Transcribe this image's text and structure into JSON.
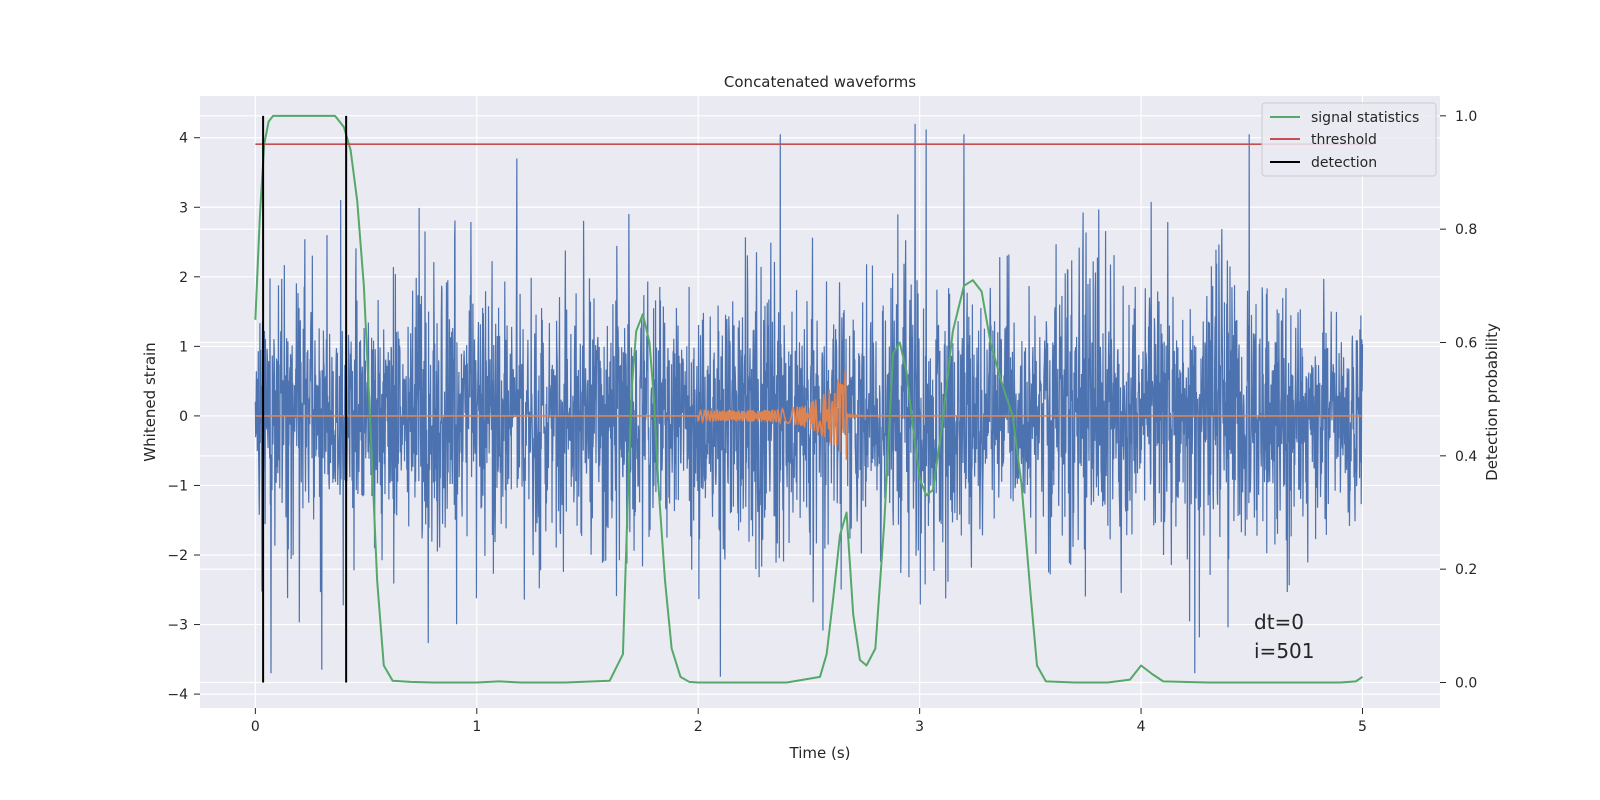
{
  "chart_data": {
    "type": "line",
    "title": "Concatenated waveforms",
    "xlabel": "Time (s)",
    "ylabel": "Whitened strain",
    "y2label": "Detection probability",
    "xlim": [
      -0.25,
      5.35
    ],
    "ylim": [
      -4.2,
      4.6
    ],
    "y2lim": [
      -0.045,
      1.035
    ],
    "xticks": [
      0,
      1,
      2,
      3,
      4,
      5
    ],
    "yticks": [
      -4,
      -3,
      -2,
      -1,
      0,
      1,
      2,
      3,
      4
    ],
    "y2ticks": [
      0.0,
      0.2,
      0.4,
      0.6,
      0.8,
      1.0
    ],
    "xtick_labels": [
      "0",
      "1",
      "2",
      "3",
      "4",
      "5"
    ],
    "ytick_labels": [
      "−4",
      "−3",
      "−2",
      "−1",
      "0",
      "1",
      "2",
      "3",
      "4"
    ],
    "y2tick_labels": [
      "0.0",
      "0.2",
      "0.4",
      "0.6",
      "0.8",
      "1.0"
    ],
    "grid": true,
    "legend_position": "top-right",
    "legend": [
      {
        "label": "signal statistics",
        "color": "#55a868"
      },
      {
        "label": "threshold",
        "color": "#c44e52"
      },
      {
        "label": "detection",
        "color": "#000000"
      }
    ],
    "annotations": [
      "dt=0",
      "i=501"
    ],
    "series": [
      {
        "kind": "noise-strain",
        "color": "#4c72b0",
        "x_range": [
          0,
          5
        ],
        "approx_envelope": [
          -3.7,
          4.2
        ],
        "max_x": [
          2.98,
          4.2
        ],
        "min_x": [
          0.3,
          -3.65
        ]
      },
      {
        "kind": "injected-chirp",
        "color": "#dd8452",
        "x_range": [
          0,
          5
        ],
        "chirp_start": 2.0,
        "chirp_end": 2.67,
        "peak_amplitude": 0.72
      },
      {
        "name": "signal statistics",
        "color": "#55a868",
        "axis": "right",
        "x": [
          0,
          0.02,
          0.04,
          0.06,
          0.08,
          0.1,
          0.15,
          0.2,
          0.3,
          0.36,
          0.4,
          0.43,
          0.46,
          0.49,
          0.52,
          0.55,
          0.58,
          0.62,
          0.7,
          0.8,
          1.0,
          1.1,
          1.2,
          1.4,
          1.6,
          1.66,
          1.68,
          1.7,
          1.72,
          1.75,
          1.78,
          1.8,
          1.82,
          1.85,
          1.88,
          1.92,
          1.96,
          2.0,
          2.2,
          2.4,
          2.55,
          2.58,
          2.61,
          2.64,
          2.67,
          2.7,
          2.73,
          2.76,
          2.8,
          2.84,
          2.88,
          2.91,
          2.94,
          2.97,
          3.0,
          3.03,
          3.06,
          3.1,
          3.15,
          3.2,
          3.24,
          3.28,
          3.32,
          3.37,
          3.42,
          3.46,
          3.5,
          3.53,
          3.57,
          3.7,
          3.85,
          3.95,
          4.0,
          4.05,
          4.1,
          4.3,
          4.6,
          4.9,
          4.97,
          5.0
        ],
        "y": [
          0.64,
          0.82,
          0.95,
          0.99,
          1.0,
          1.0,
          1.0,
          1.0,
          1.0,
          1.0,
          0.98,
          0.94,
          0.85,
          0.7,
          0.45,
          0.18,
          0.03,
          0.003,
          0.001,
          0.0,
          0.0,
          0.002,
          0.0,
          0.0,
          0.003,
          0.05,
          0.3,
          0.52,
          0.62,
          0.65,
          0.6,
          0.5,
          0.35,
          0.18,
          0.06,
          0.01,
          0.001,
          0.0,
          0.0,
          0.0,
          0.01,
          0.05,
          0.15,
          0.26,
          0.3,
          0.12,
          0.04,
          0.03,
          0.06,
          0.28,
          0.58,
          0.6,
          0.55,
          0.45,
          0.36,
          0.33,
          0.34,
          0.45,
          0.62,
          0.7,
          0.71,
          0.69,
          0.6,
          0.53,
          0.47,
          0.35,
          0.16,
          0.03,
          0.002,
          0.0,
          0.0,
          0.005,
          0.03,
          0.015,
          0.002,
          0.0,
          0.0,
          0.0,
          0.002,
          0.01
        ]
      },
      {
        "name": "threshold",
        "color": "#c44e52",
        "axis": "right",
        "x": [
          0,
          5.05
        ],
        "y": [
          0.95,
          0.95
        ]
      },
      {
        "name": "detection",
        "color": "#000000",
        "axis": "right",
        "type": "vlines",
        "x": [
          0.035,
          0.41
        ],
        "y_range": [
          0.0,
          1.0
        ]
      }
    ]
  }
}
